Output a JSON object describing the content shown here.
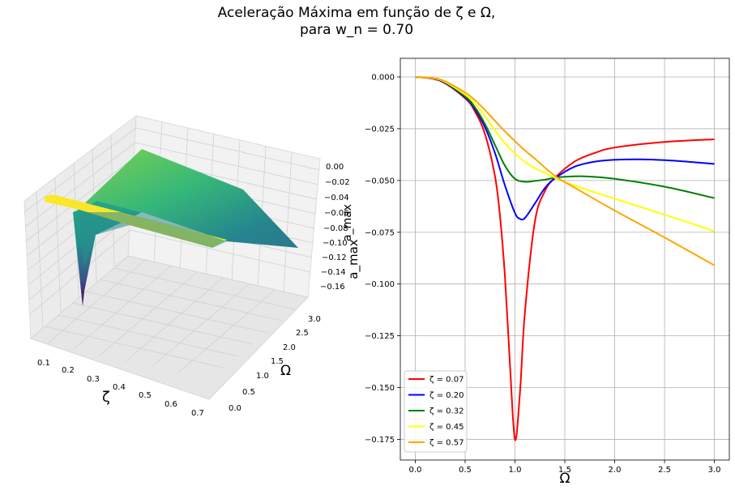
{
  "figure": {
    "title_line1": "Aceleração Máxima em função de ζ e Ω,",
    "title_line2": "para w_n = 0.70"
  },
  "chart_data": [
    {
      "type": "surface",
      "xlabel": "ζ",
      "ylabel": "Ω",
      "zlabel": "a_max",
      "x_ticks": [
        "0.1",
        "0.2",
        "0.3",
        "0.4",
        "0.5",
        "0.6",
        "0.7"
      ],
      "y_ticks": [
        "0.0",
        "0.5",
        "1.0",
        "1.5",
        "2.0",
        "2.5",
        "3.0"
      ],
      "z_ticks": [
        "0.00",
        "−0.02",
        "−0.04",
        "−0.06",
        "−0.08",
        "−0.10",
        "−0.12",
        "−0.14",
        "−0.16"
      ],
      "xlim": [
        0.05,
        0.75
      ],
      "ylim": [
        0,
        3
      ],
      "zlim": [
        -0.17,
        0
      ],
      "colormap": "viridis",
      "grid": true
    },
    {
      "type": "line",
      "xlabel": "Ω",
      "ylabel": "a_max",
      "xlim": [
        -0.15,
        3.15
      ],
      "ylim": [
        -0.185,
        0.009
      ],
      "x_ticks": [
        0,
        0.5,
        1.0,
        1.5,
        2.0,
        2.5,
        3.0
      ],
      "x_tick_labels": [
        "0.0",
        "0.5",
        "1.0",
        "1.5",
        "2.0",
        "2.5",
        "3.0"
      ],
      "y_ticks": [
        0,
        -0.025,
        -0.05,
        -0.075,
        -0.1,
        -0.125,
        -0.15,
        -0.175
      ],
      "y_tick_labels": [
        "0.000",
        "−0.025",
        "−0.050",
        "−0.075",
        "−0.100",
        "−0.125",
        "−0.150",
        "−0.175"
      ],
      "grid": true,
      "legend_position": "lower-left",
      "series": [
        {
          "name": "ζ = 0.07",
          "color": "#ff0000",
          "x": [
            0,
            0.25,
            0.5,
            0.6,
            0.7,
            0.8,
            0.85,
            0.9,
            0.95,
            1.0,
            1.05,
            1.1,
            1.2,
            1.3,
            1.4,
            1.6,
            1.8,
            2.0,
            2.5,
            3.0
          ],
          "y": [
            0,
            -0.0019,
            -0.0103,
            -0.0168,
            -0.0277,
            -0.0481,
            -0.0673,
            -0.0968,
            -0.1391,
            -0.1752,
            -0.1524,
            -0.1135,
            -0.0698,
            -0.0552,
            -0.0487,
            -0.0408,
            -0.0367,
            -0.0341,
            -0.0314,
            -0.0301
          ]
        },
        {
          "name": "ζ = 0.20",
          "color": "#0000ff",
          "x": [
            0,
            0.25,
            0.5,
            0.6,
            0.7,
            0.8,
            0.9,
            1.0,
            1.05,
            1.1,
            1.2,
            1.3,
            1.4,
            1.6,
            1.8,
            2.0,
            2.25,
            2.5,
            2.75,
            3.0
          ],
          "y": [
            0,
            -0.0017,
            -0.0099,
            -0.0157,
            -0.0244,
            -0.0368,
            -0.0525,
            -0.0657,
            -0.0685,
            -0.0681,
            -0.0611,
            -0.0537,
            -0.049,
            -0.0433,
            -0.0409,
            -0.04,
            -0.0398,
            -0.0402,
            -0.041,
            -0.042
          ]
        },
        {
          "name": "ζ = 0.32",
          "color": "#008000",
          "x": [
            0,
            0.25,
            0.5,
            0.6,
            0.7,
            0.8,
            0.9,
            1.0,
            1.1,
            1.2,
            1.3,
            1.4,
            1.5,
            1.7,
            2.0,
            2.5,
            3.0
          ],
          "y": [
            0,
            -0.0015,
            -0.0094,
            -0.0148,
            -0.0228,
            -0.0329,
            -0.0429,
            -0.0492,
            -0.0506,
            -0.0502,
            -0.0496,
            -0.0487,
            -0.0482,
            -0.048,
            -0.0492,
            -0.053,
            -0.0585
          ]
        },
        {
          "name": "ζ = 0.45",
          "color": "#ffff00",
          "x": [
            0,
            0.25,
            0.5,
            0.6,
            0.7,
            0.8,
            0.9,
            1.0,
            1.1,
            1.2,
            1.4,
            1.6,
            2.0,
            2.5,
            3.0
          ],
          "y": [
            0,
            -0.0014,
            -0.0085,
            -0.013,
            -0.019,
            -0.0258,
            -0.032,
            -0.037,
            -0.041,
            -0.044,
            -0.0487,
            -0.0525,
            -0.0588,
            -0.0665,
            -0.0745
          ]
        },
        {
          "name": "ζ = 0.57",
          "color": "#ffa500",
          "x": [
            0,
            0.25,
            0.5,
            0.6,
            0.7,
            0.8,
            0.9,
            1.0,
            1.1,
            1.2,
            1.4,
            1.6,
            2.0,
            2.5,
            3.0
          ],
          "y": [
            0,
            -0.0012,
            -0.0075,
            -0.0113,
            -0.016,
            -0.0212,
            -0.0263,
            -0.031,
            -0.0355,
            -0.0395,
            -0.0478,
            -0.0535,
            -0.0645,
            -0.0775,
            -0.091
          ]
        }
      ]
    }
  ]
}
